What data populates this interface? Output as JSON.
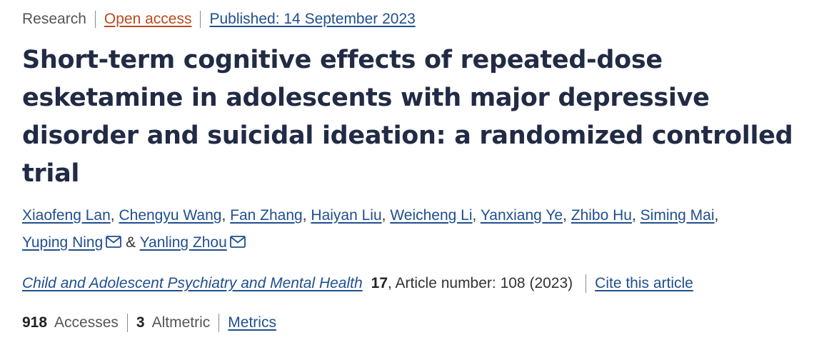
{
  "header": {
    "article_type": "Research",
    "open_access": "Open access",
    "published": "Published: 14 September 2023"
  },
  "title": "Short-term cognitive effects of repeated-dose esketamine in adolescents with major depressive disorder and suicidal ideation: a randomized controlled trial",
  "authors": [
    {
      "name": "Xiaofeng Lan"
    },
    {
      "name": "Chengyu Wang"
    },
    {
      "name": "Fan Zhang"
    },
    {
      "name": "Haiyan Liu"
    },
    {
      "name": "Weicheng Li"
    },
    {
      "name": "Yanxiang Ye"
    },
    {
      "name": "Zhibo Hu"
    },
    {
      "name": "Siming Mai"
    },
    {
      "name": "Yuping Ning"
    },
    {
      "name": "Yanling Zhou"
    }
  ],
  "author_separator": ",",
  "author_ampersand": "&",
  "citation": {
    "journal": "Child and Adolescent Psychiatry and Mental Health",
    "volume": "17",
    "article_info": ", Article number: 108 (2023)",
    "cite_link": "Cite this article"
  },
  "metrics": {
    "accesses_count": "918",
    "accesses_label": "Accesses",
    "altmetric_count": "3",
    "altmetric_label": "Altmetric",
    "metrics_link": "Metrics"
  },
  "icons": {
    "mail": "mail-icon"
  },
  "colors": {
    "link": "#1f4f8f",
    "open_access": "#b84b1f",
    "title": "#222b45"
  }
}
